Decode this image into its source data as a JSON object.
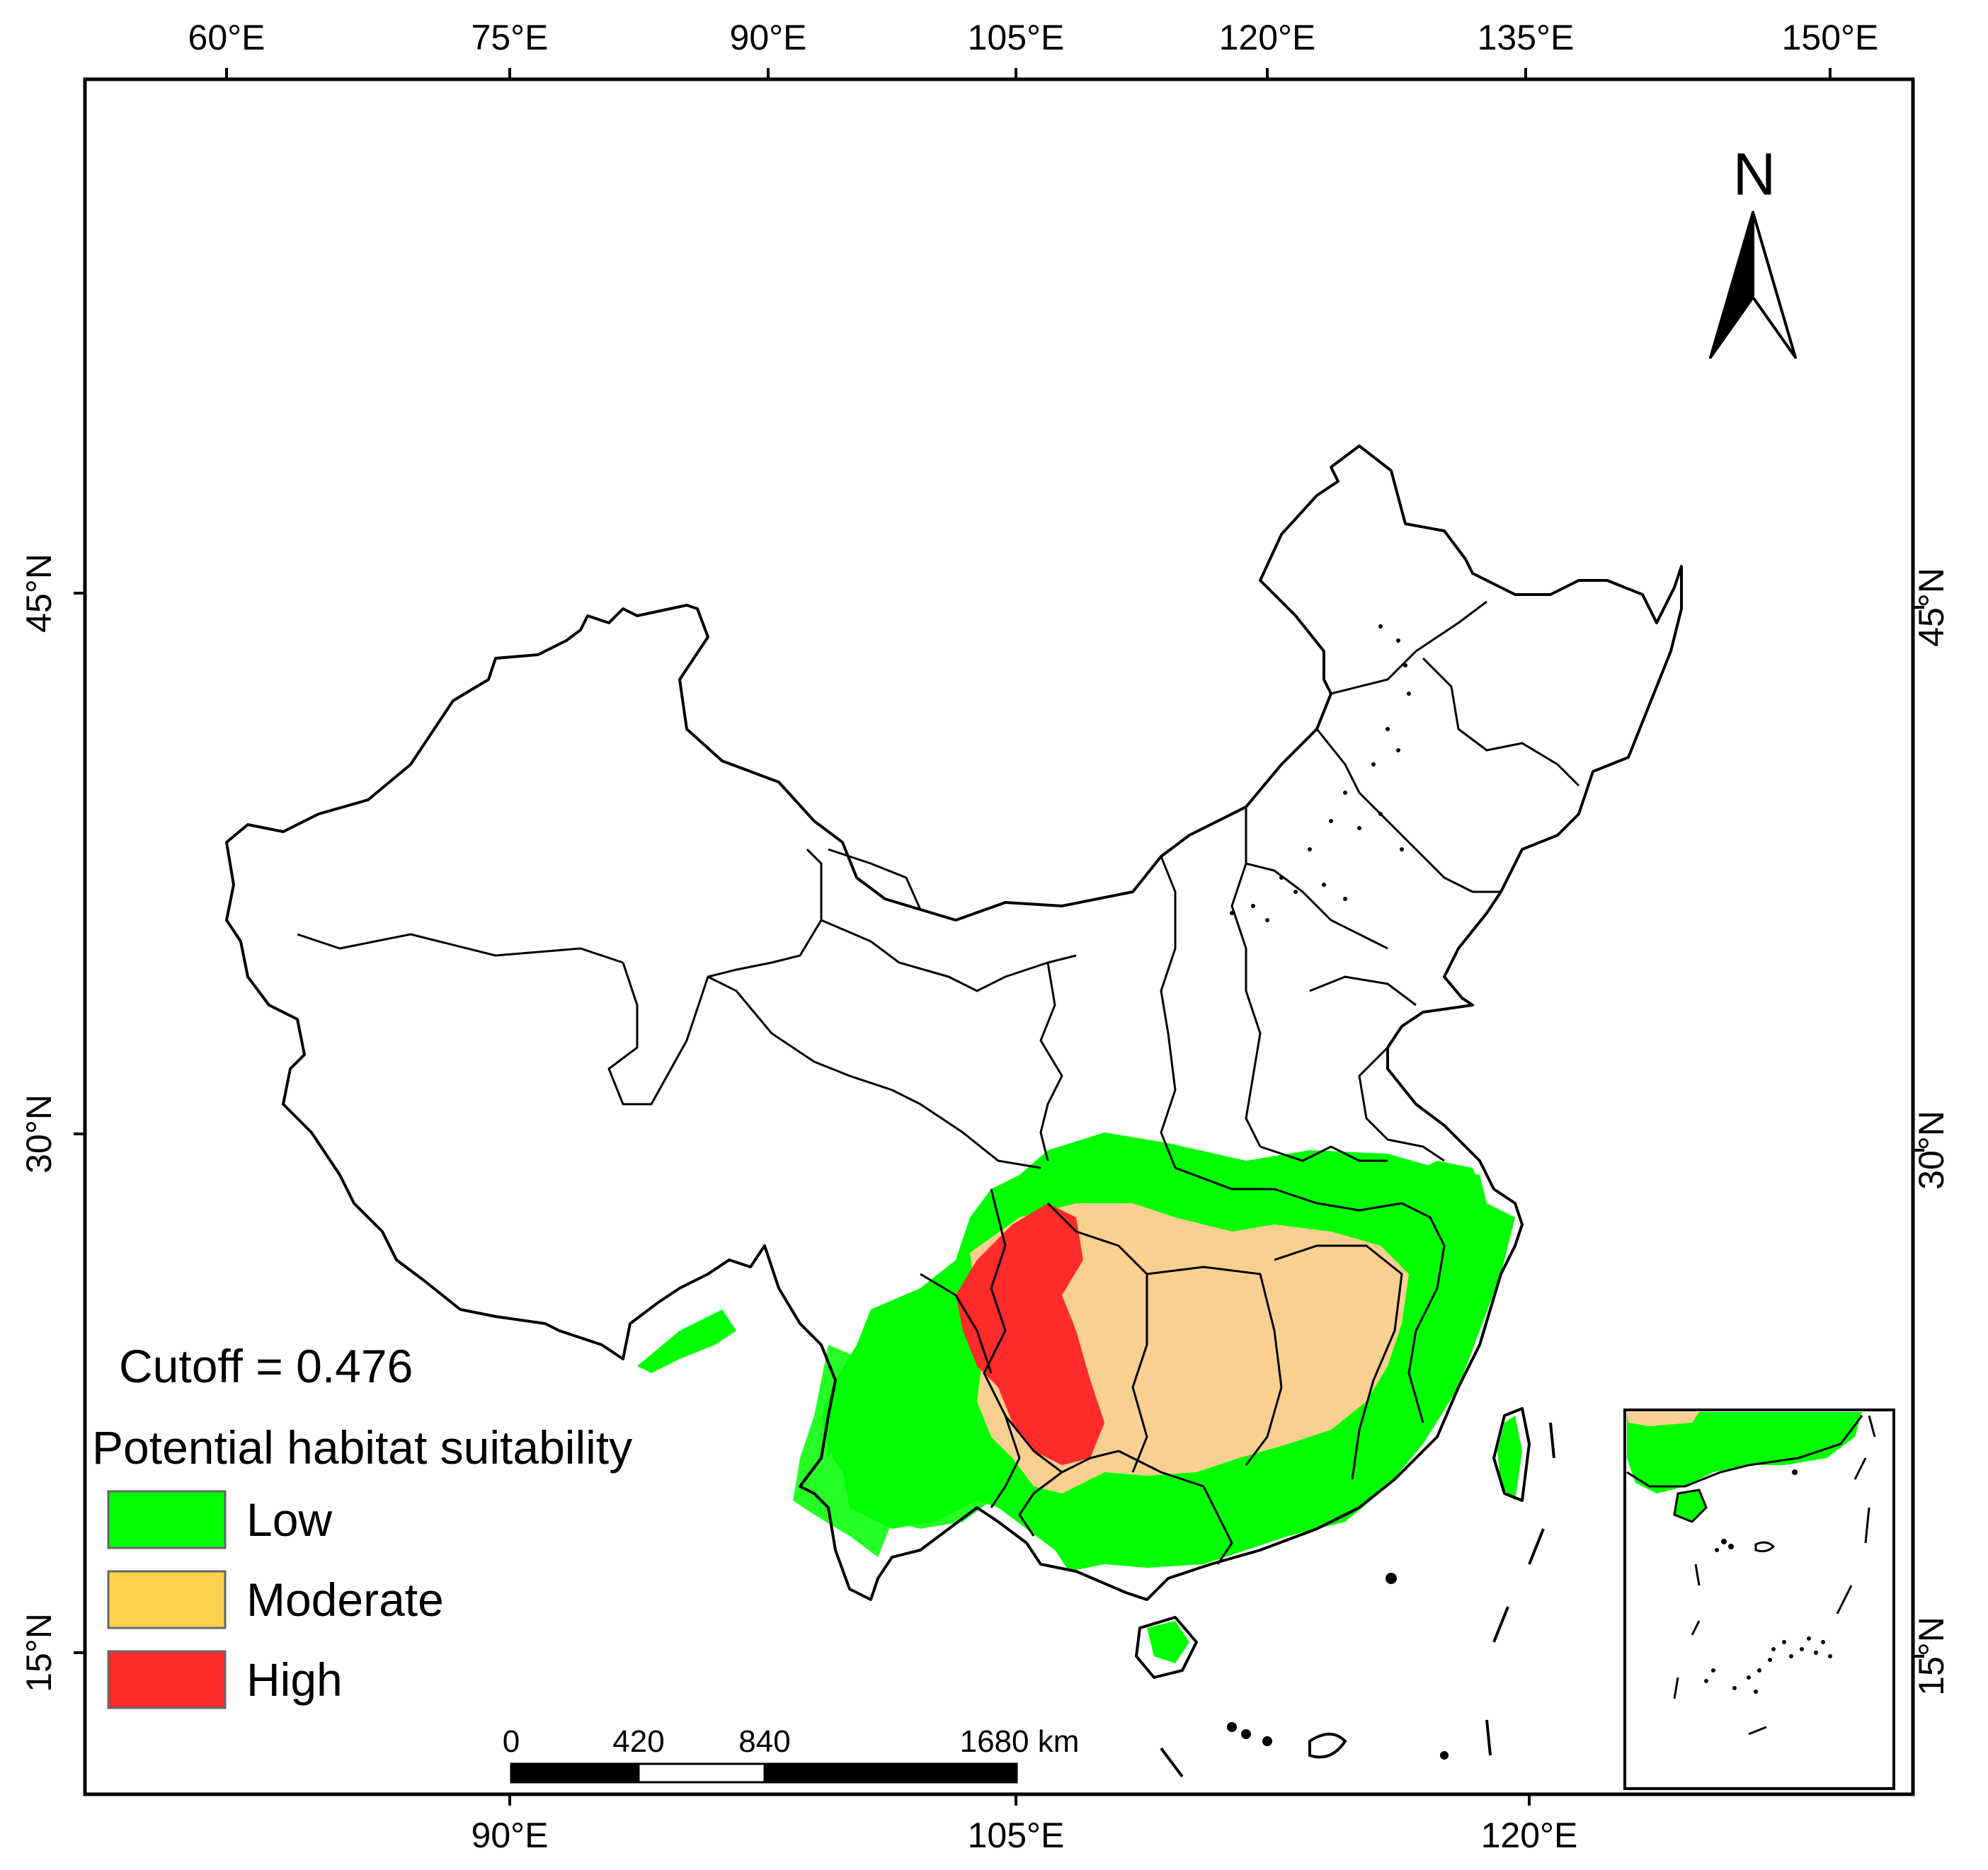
{
  "map": {
    "top_axis_labels": [
      "60°E",
      "75°E",
      "90°E",
      "105°E",
      "120°E",
      "135°E",
      "150°E"
    ],
    "bottom_axis_labels": [
      "90°E",
      "105°E",
      "120°E"
    ],
    "left_axis_labels": [
      "45°N",
      "30°N",
      "15°N"
    ],
    "right_axis_labels": [
      "45°N",
      "30°N",
      "15°N"
    ],
    "north_arrow_label": "N",
    "cutoff_text": "Cutoff = 0.476",
    "legend": {
      "title": "Potential habitat suitability",
      "items": [
        {
          "label": "Low",
          "color": "#00ff00"
        },
        {
          "label": "Moderate",
          "color": "#ffd24d"
        },
        {
          "label": "High",
          "color": "#ff2a2a"
        }
      ]
    },
    "scale_bar": {
      "labels": [
        "0",
        "420",
        "840",
        "1680 km"
      ]
    },
    "colors": {
      "low": "#00ff00",
      "moderate": "#f9d08f",
      "high": "#ff2a2a",
      "frame": "#000000"
    }
  }
}
